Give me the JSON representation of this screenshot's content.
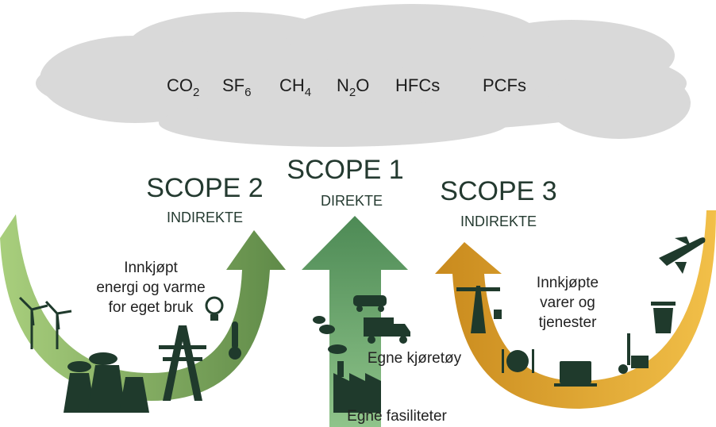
{
  "cloud": {
    "gases": [
      {
        "base": "CO",
        "sub": "2"
      },
      {
        "base": "SF",
        "sub": "6"
      },
      {
        "base": "CH",
        "sub": "4"
      },
      {
        "base": "N",
        "sub": "2",
        "rest": "O"
      },
      {
        "base": "HFCs"
      },
      {
        "base": "PCFs"
      }
    ]
  },
  "scopes": [
    {
      "title": "SCOPE 2",
      "kind": "INDIREKTE",
      "description": [
        "Innkjøpt",
        "energi og varme",
        "for eget bruk"
      ]
    },
    {
      "title": "SCOPE 1",
      "kind": "DIREKTE",
      "labels": [
        "Egne kjøretøy",
        "Egne fasiliteter"
      ]
    },
    {
      "title": "SCOPE 3",
      "kind": "INDIREKTE",
      "description": [
        "Innkjøpte",
        "varer og",
        "tjenester"
      ]
    }
  ]
}
